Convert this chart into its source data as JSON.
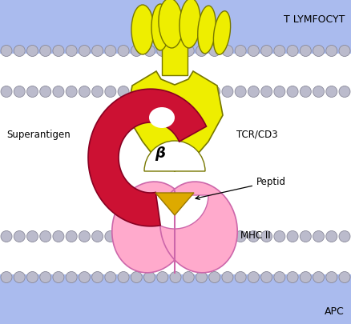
{
  "bg_top": "#aabbee",
  "bg_bottom": "#aabbee",
  "white": "#ffffff",
  "membrane_white": "#ffffff",
  "head_fill": "#bbbbcc",
  "head_edge": "#888899",
  "tcr_yellow": "#eeee00",
  "tcr_edge": "#777700",
  "sag_red": "#cc1133",
  "sag_edge": "#880022",
  "mhc_pink": "#ffaacc",
  "mhc_edge": "#cc66aa",
  "mhc_line": "#cc66aa",
  "peptid_orange": "#ddaa00",
  "peptid_edge": "#997700",
  "text_color": "#000000",
  "title_top": "T LYMFOCYT",
  "title_bottom": "APC",
  "label_tcr": "TCR/CD3",
  "label_superantigen": "Superantigen",
  "label_mhc": "MHC II",
  "label_peptid": "Peptid",
  "label_beta": "β",
  "fig_width": 4.38,
  "fig_height": 4.06,
  "dpi": 100
}
